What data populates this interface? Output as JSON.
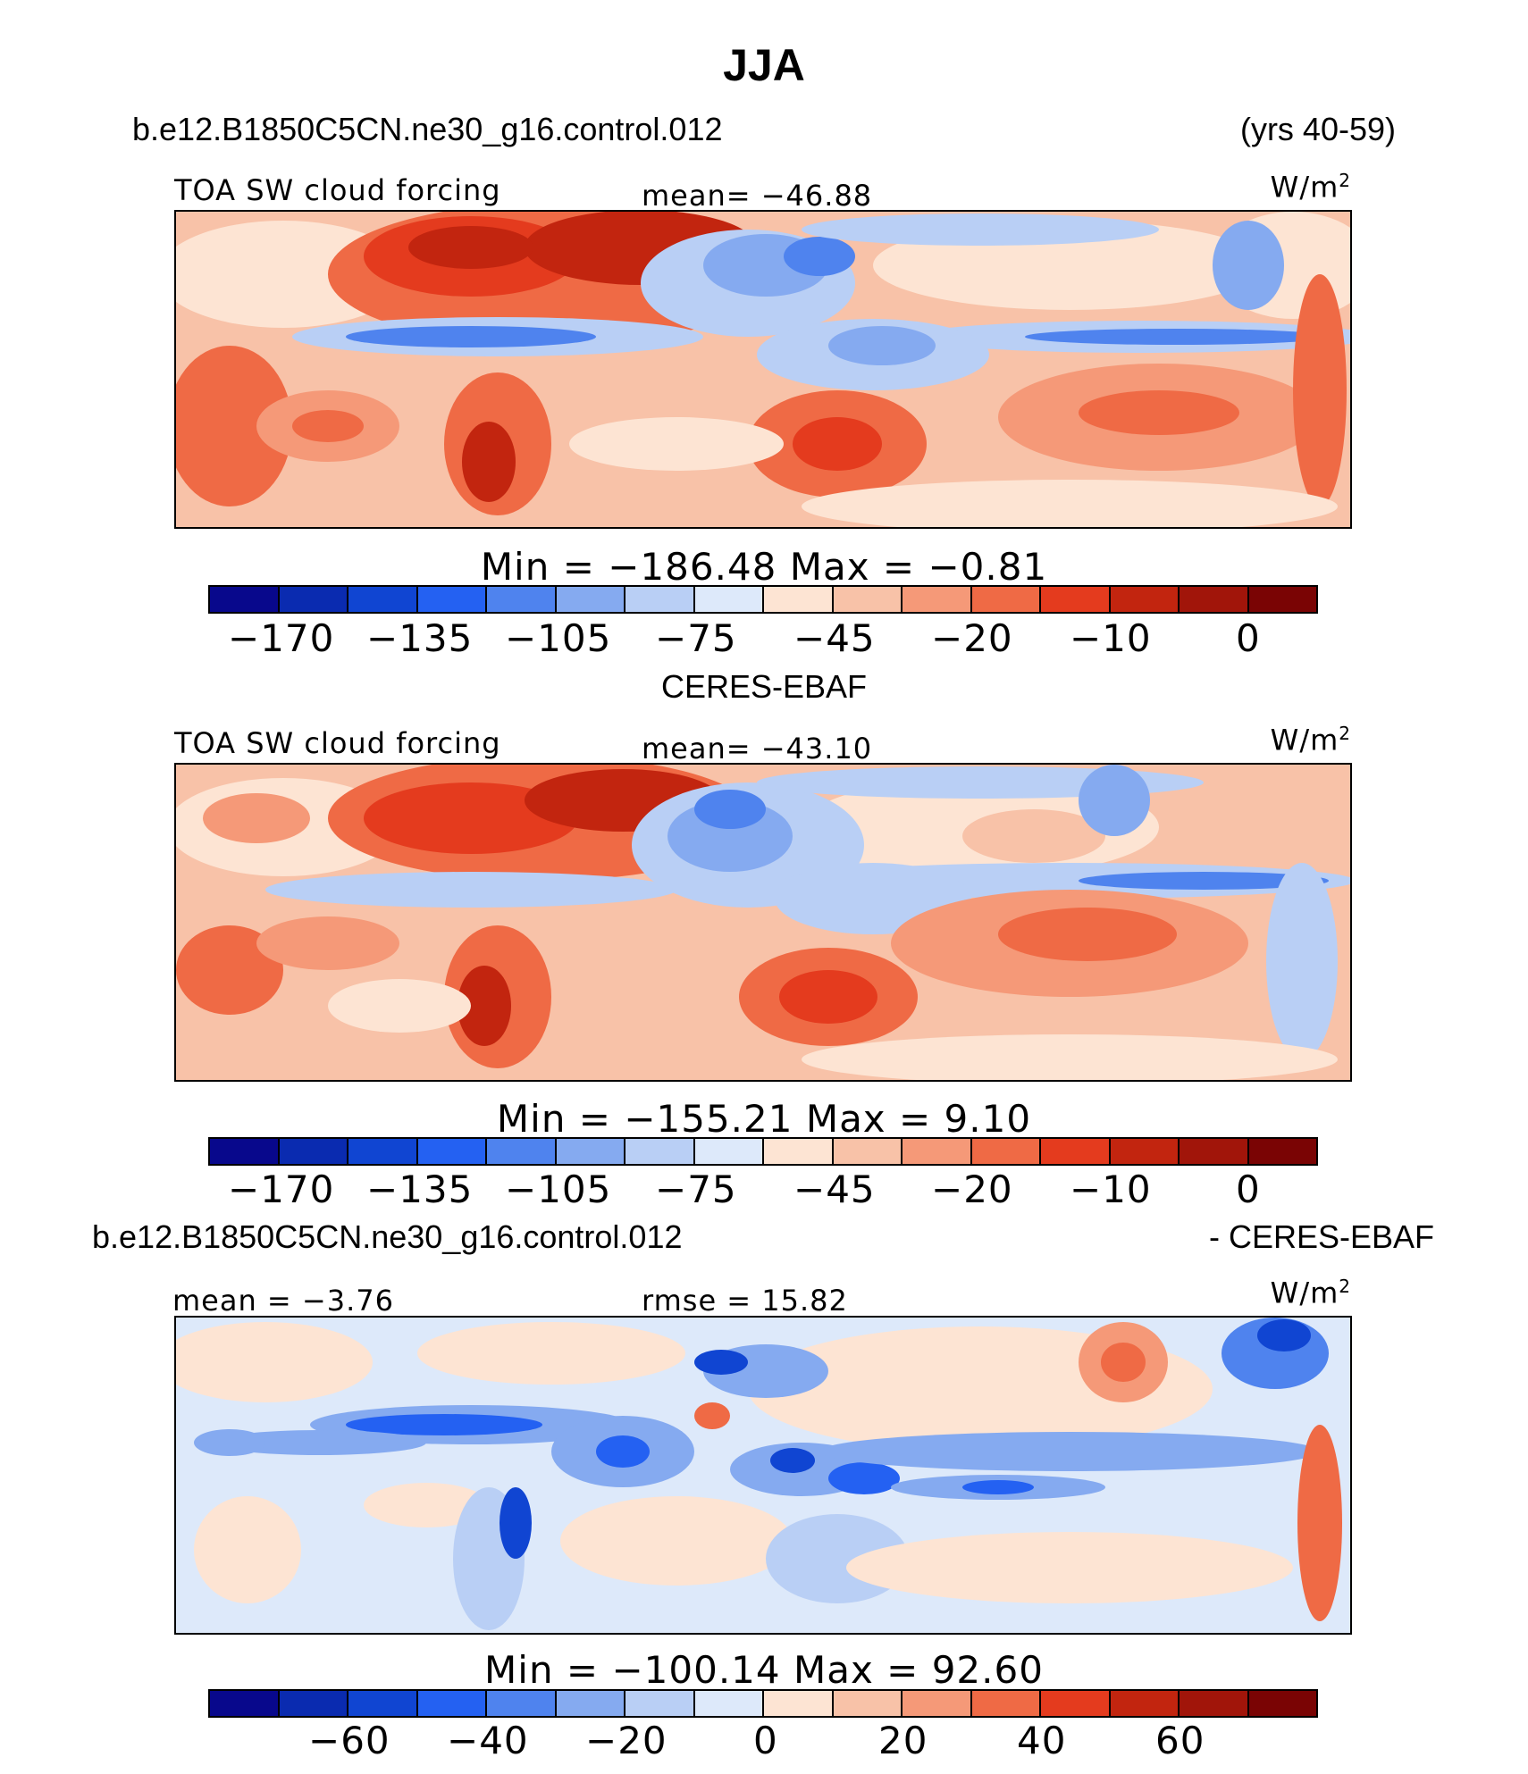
{
  "title": "JJA",
  "header": {
    "case": "b.e12.B1850C5CN.ne30_g16.control.012",
    "years": "(yrs 40-59)"
  },
  "panels": [
    {
      "variable": "TOA SW cloud forcing",
      "stat": "mean= −46.88",
      "units": "W/m",
      "units_sup": "2",
      "minmax": "Min  =  −186.48  Max  =    −0.81",
      "ticks": [
        "−170",
        "−135",
        "−105",
        "−75",
        "−45",
        "−20",
        "−10",
        "0"
      ]
    },
    {
      "subtitle": "CERES-EBAF",
      "variable": "TOA SW cloud forcing",
      "stat": "mean= −43.10",
      "units": "W/m",
      "units_sup": "2",
      "minmax": "Min  =  −155.21  Max  =     9.10",
      "ticks": [
        "−170",
        "−135",
        "−105",
        "−75",
        "−45",
        "−20",
        "−10",
        "0"
      ]
    },
    {
      "subtitle_left": "b.e12.B1850C5CN.ne30_g16.control.012",
      "subtitle_right": "- CERES-EBAF",
      "mean": "mean  =   −3.76",
      "rmse": "rmse  =   15.82",
      "units": "W/m",
      "units_sup": "2",
      "minmax": "Min  =  −100.14  Max  =   92.60",
      "ticks": [
        "−60",
        "−40",
        "−20",
        "0",
        "20",
        "40",
        "60"
      ]
    }
  ],
  "chart_data": {
    "type": "heatmap",
    "palette": [
      "#08088c",
      "#0a2bb0",
      "#1045d2",
      "#2461f2",
      "#4f83ee",
      "#85aaf0",
      "#b9cff5",
      "#dde9fa",
      "#fde4d3",
      "#f8c2a8",
      "#f59978",
      "#ef6a45",
      "#e43b1e",
      "#c2250f",
      "#a1150a",
      "#7a0404"
    ],
    "maps": [
      {
        "name": "b.e12.B1850C5CN.ne30_g16.control.012",
        "variable": "TOA SW cloud forcing",
        "mean": -46.88,
        "min": -186.48,
        "max": -0.81,
        "levels": [
          -170,
          -135,
          -105,
          -75,
          -45,
          -20,
          -10,
          0
        ]
      },
      {
        "name": "CERES-EBAF",
        "variable": "TOA SW cloud forcing",
        "mean": -43.1,
        "min": -155.21,
        "max": 9.1,
        "levels": [
          -170,
          -135,
          -105,
          -75,
          -45,
          -20,
          -10,
          0
        ]
      },
      {
        "name": "b.e12.B1850C5CN.ne30_g16.control.012 - CERES-EBAF",
        "mean": -3.76,
        "rmse": 15.82,
        "min": -100.14,
        "max": 92.6,
        "levels": [
          -60,
          -40,
          -20,
          0,
          20,
          40,
          60
        ]
      }
    ]
  }
}
